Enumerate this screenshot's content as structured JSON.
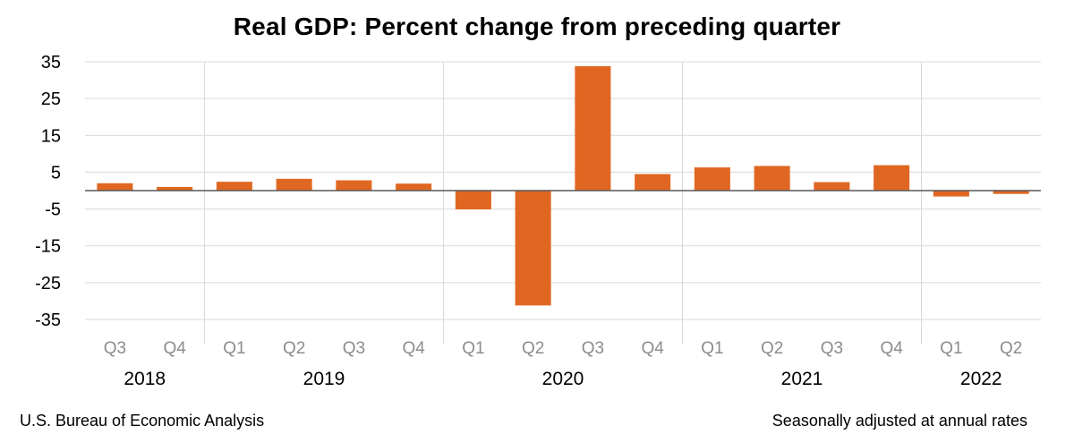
{
  "chart_data": {
    "type": "bar",
    "title": "Real GDP:  Percent change from preceding quarter",
    "xlabel": "",
    "ylabel": "",
    "ylim": [
      -35,
      35
    ],
    "yticks": [
      35,
      25,
      15,
      5,
      -5,
      -15,
      -25,
      -35
    ],
    "categories": [
      "Q3",
      "Q4",
      "Q1",
      "Q2",
      "Q3",
      "Q4",
      "Q1",
      "Q2",
      "Q3",
      "Q4",
      "Q1",
      "Q2",
      "Q3",
      "Q4",
      "Q1",
      "Q2"
    ],
    "years": [
      {
        "label": "2018",
        "start": 0,
        "end": 1
      },
      {
        "label": "2019",
        "start": 2,
        "end": 5
      },
      {
        "label": "2020",
        "start": 6,
        "end": 9
      },
      {
        "label": "2021",
        "start": 10,
        "end": 13
      },
      {
        "label": "2022",
        "start": 14,
        "end": 15
      }
    ],
    "values": [
      2.0,
      1.0,
      2.4,
      3.2,
      2.8,
      1.9,
      -5.1,
      -31.2,
      33.8,
      4.5,
      6.3,
      6.7,
      2.3,
      6.9,
      -1.6,
      -0.9
    ],
    "bar_color": "#e06722"
  },
  "footer": {
    "source": "U.S. Bureau of Economic Analysis",
    "note": "Seasonally adjusted at annual rates"
  }
}
